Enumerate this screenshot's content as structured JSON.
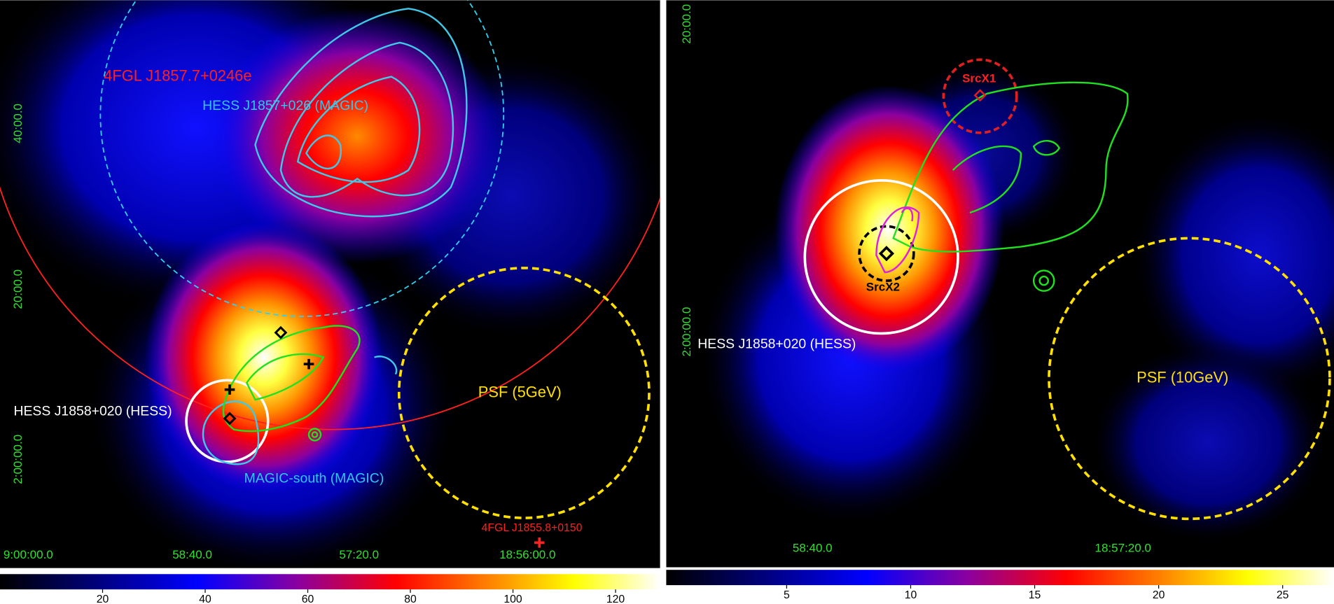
{
  "panels": [
    {
      "annotations": [
        "4FGL J1857.7+0246e",
        "HESS J1857+026 (MAGIC)",
        "HESS J1858+020 (HESS)",
        "PSF (5GeV)",
        "MAGIC-south (MAGIC)",
        "4FGL J1855.8+0150"
      ],
      "x_labels": [
        "9:00:00.0",
        "58:40.0",
        "57:20.0",
        "18:56:00.0"
      ],
      "y_labels": [
        "40:00.0",
        "20:00.0",
        "2:00:00.0"
      ],
      "colorbar": {
        "range": [
          0,
          128.7
        ],
        "ticks": [
          20,
          40,
          60,
          80,
          100,
          120
        ]
      }
    },
    {
      "annotations": [
        "SrcX1",
        "SrcX2",
        "HESS J1858+020 (HESS)",
        "PSF (10GeV)"
      ],
      "x_labels": [
        "58:40.0",
        "18:57:20.0"
      ],
      "y_labels": [
        "20:00.0",
        "2:00:00.0"
      ],
      "colorbar": {
        "range": [
          0.14,
          27.07
        ],
        "ticks": [
          5,
          10,
          15,
          20,
          25
        ]
      }
    }
  ]
}
